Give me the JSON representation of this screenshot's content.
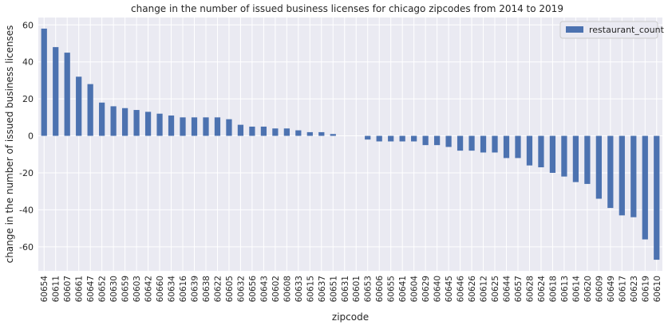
{
  "chart_data": {
    "type": "bar",
    "title": "change in the number of issued business licenses for chicago zipcodes from 2014 to 2019",
    "xlabel": "zipcode",
    "ylabel": "change in the number of issued business licenses",
    "legend": {
      "position": "top-right",
      "entries": [
        "restaurant_count"
      ]
    },
    "grid": true,
    "ylim": [
      -73,
      64
    ],
    "yticks": [
      60,
      40,
      20,
      0,
      -20,
      -40,
      -60
    ],
    "series": [
      {
        "name": "restaurant_count",
        "color": "#4c72b0",
        "values": [
          58,
          48,
          45,
          32,
          28,
          18,
          16,
          15,
          14,
          13,
          12,
          11,
          10,
          10,
          10,
          10,
          9,
          6,
          5,
          5,
          4,
          4,
          3,
          2,
          2,
          1,
          0,
          0,
          -2,
          -3,
          -3,
          -3,
          -3,
          -5,
          -5,
          -6,
          -8,
          -8,
          -9,
          -9,
          -12,
          -12,
          -16,
          -17,
          -20,
          -22,
          -25,
          -26,
          -34,
          -39,
          -43,
          -44,
          -56,
          -67
        ]
      }
    ],
    "categories": [
      "60654",
      "60611",
      "60607",
      "60661",
      "60647",
      "60652",
      "60630",
      "60659",
      "60603",
      "60642",
      "60660",
      "60634",
      "60616",
      "60639",
      "60638",
      "60622",
      "60605",
      "60632",
      "60656",
      "60643",
      "60602",
      "60608",
      "60633",
      "60615",
      "60637",
      "60651",
      "60631",
      "60601",
      "60653",
      "60606",
      "60655",
      "60641",
      "60604",
      "60629",
      "60640",
      "60645",
      "60646",
      "60626",
      "60612",
      "60625",
      "60644",
      "60657",
      "60628",
      "60624",
      "60618",
      "60613",
      "60614",
      "60620",
      "60609",
      "60649",
      "60617",
      "60623",
      "60619",
      "60610"
    ]
  },
  "colors": {
    "plot_background": "#eaeaf2",
    "grid": "#ffffff",
    "bar": "#4c72b0"
  }
}
